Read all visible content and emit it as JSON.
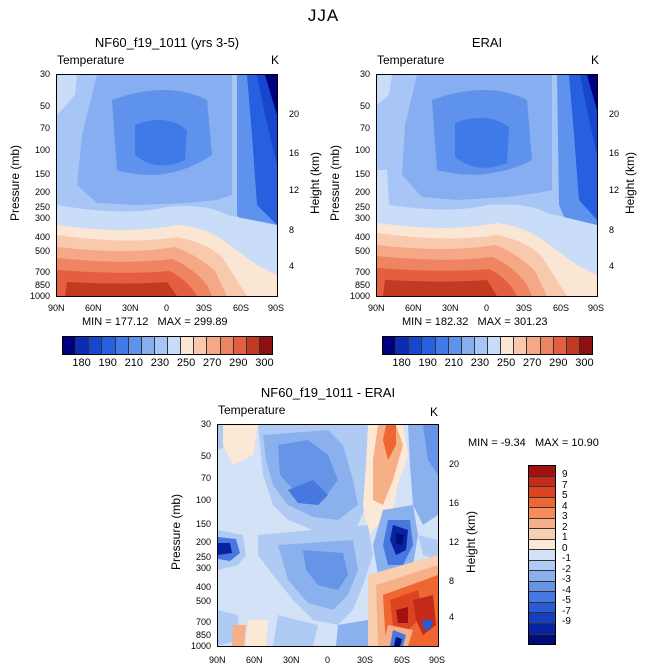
{
  "suptitle": "JJA",
  "panels": {
    "model": {
      "title": "NF60_f19_1011 (yrs 3-5)",
      "variable": "Temperature",
      "unit": "K",
      "min": "177.12",
      "max": "299.89"
    },
    "obs": {
      "title": "ERAI",
      "variable": "Temperature",
      "unit": "K",
      "min": "182.32",
      "max": "301.23"
    },
    "diff": {
      "title": "NF60_f19_1011 - ERAI",
      "variable": "Temperature",
      "unit": "K",
      "min": "-9.34",
      "max": "10.90"
    }
  },
  "labels": {
    "pressure": "Pressure (mb)",
    "height": "Height (km)",
    "min_label": "MIN = ",
    "max_label": "MAX = "
  },
  "colorbars": {
    "abs_colors": [
      "#00007f",
      "#0b2db4",
      "#1746cf",
      "#2660e0",
      "#3e7ae8",
      "#5f92ec",
      "#86aef1",
      "#a8c6f5",
      "#c9dcf8",
      "#fbe6d4",
      "#f8c9ad",
      "#f4a885",
      "#ee8461",
      "#e45f40",
      "#c33a22",
      "#8b1010"
    ],
    "abs_labels": [
      "180",
      "190",
      "210",
      "230",
      "250",
      "270",
      "290",
      "300"
    ],
    "diff_colors": [
      "#a21111",
      "#c42a18",
      "#dc4320",
      "#ee6632",
      "#f58c5a",
      "#f6af87",
      "#f8cfb0",
      "#fbe9d6",
      "#d4e2f7",
      "#b0cbf3",
      "#8ab0ee",
      "#6694e7",
      "#4678e0",
      "#2a5bd2",
      "#163fbf",
      "#07239f",
      "#000b7c"
    ],
    "diff_labels": [
      "9",
      "7",
      "5",
      "4",
      "3",
      "2",
      "1",
      "0",
      "-1",
      "-2",
      "-3",
      "-4",
      "-5",
      "-7",
      "-9"
    ]
  },
  "chart_data": [
    {
      "type": "heatmap",
      "title": "NF60_f19_1011 (yrs 3-5)",
      "variable": "Temperature (K)",
      "x": [
        "90N",
        "60N",
        "30N",
        "0",
        "30S",
        "60S",
        "90S"
      ],
      "y_pressure_mb": [
        30,
        50,
        70,
        100,
        150,
        200,
        250,
        300,
        400,
        500,
        700,
        850,
        1000
      ],
      "y_height_km": [
        4,
        8,
        12,
        16,
        20
      ],
      "levels": [
        180,
        185,
        190,
        200,
        210,
        220,
        230,
        240,
        250,
        260,
        270,
        280,
        290,
        295,
        300
      ],
      "min": 177.12,
      "max": 299.89
    },
    {
      "type": "heatmap",
      "title": "ERAI",
      "variable": "Temperature (K)",
      "x": [
        "90N",
        "60N",
        "30N",
        "0",
        "30S",
        "60S",
        "90S"
      ],
      "y_pressure_mb": [
        30,
        50,
        70,
        100,
        150,
        200,
        250,
        300,
        400,
        500,
        700,
        850,
        1000
      ],
      "y_height_km": [
        4,
        8,
        12,
        16,
        20
      ],
      "levels": [
        180,
        185,
        190,
        200,
        210,
        220,
        230,
        240,
        250,
        260,
        270,
        280,
        290,
        295,
        300
      ],
      "min": 182.32,
      "max": 301.23
    },
    {
      "type": "heatmap",
      "title": "NF60_f19_1011 - ERAI",
      "variable": "Temperature (K)",
      "x": [
        "90N",
        "60N",
        "30N",
        "0",
        "30S",
        "60S",
        "90S"
      ],
      "y_pressure_mb": [
        30,
        50,
        70,
        100,
        150,
        200,
        250,
        300,
        400,
        500,
        700,
        850,
        1000
      ],
      "y_height_km": [
        4,
        8,
        12,
        16,
        20
      ],
      "levels": [
        -9,
        -7,
        -5,
        -4,
        -3,
        -2,
        -1,
        0,
        1,
        2,
        3,
        4,
        5,
        7,
        9
      ],
      "min": -9.34,
      "max": 10.9
    }
  ]
}
